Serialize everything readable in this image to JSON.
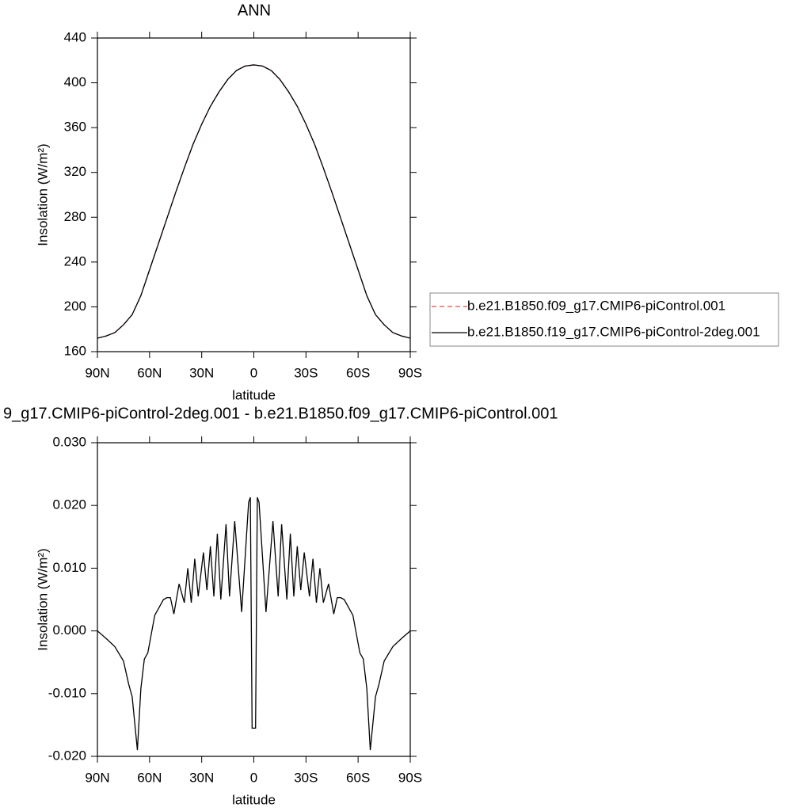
{
  "chart_data": [
    {
      "type": "line",
      "title": "ANN",
      "x_label": "latitude",
      "y_label": "Insolation (W/m²)",
      "x": [
        90,
        85,
        80,
        75,
        70,
        65,
        60,
        55,
        50,
        45,
        40,
        35,
        30,
        25,
        20,
        15,
        10,
        5,
        0,
        -5,
        -10,
        -15,
        -20,
        -25,
        -30,
        -35,
        -40,
        -45,
        -50,
        -55,
        -60,
        -65,
        -70,
        -75,
        -80,
        -85,
        -90
      ],
      "series": [
        {
          "name": "b.e21.B1850.f09_g17.CMIP6-piControl.001",
          "color": "#e8474c",
          "dash": true,
          "values": [
            172,
            174,
            177,
            184,
            193,
            210,
            233,
            256,
            279,
            302,
            324,
            345,
            363,
            379,
            392,
            403,
            411,
            415,
            416,
            415,
            411,
            403,
            392,
            379,
            363,
            345,
            324,
            302,
            279,
            256,
            233,
            210,
            193,
            184,
            177,
            174,
            172
          ]
        },
        {
          "name": "b.e21.B1850.f19_g17.CMIP6-piControl-2deg.001",
          "color": "#000000",
          "dash": false,
          "values": [
            172,
            174,
            177,
            184,
            193,
            210,
            233,
            256,
            279,
            302,
            324,
            345,
            363,
            379,
            392,
            403,
            411,
            415,
            416,
            415,
            411,
            403,
            392,
            379,
            363,
            345,
            324,
            302,
            279,
            256,
            233,
            210,
            193,
            184,
            177,
            174,
            172
          ]
        }
      ],
      "xlim": [
        90,
        -90
      ],
      "xticks": [
        {
          "value": 90,
          "label": "90N"
        },
        {
          "value": 60,
          "label": "60N"
        },
        {
          "value": 30,
          "label": "30N"
        },
        0,
        {
          "value": -30,
          "label": "30S"
        },
        {
          "value": -60,
          "label": "60S"
        },
        {
          "value": -90,
          "label": "90S"
        }
      ],
      "ylim": [
        160,
        440
      ],
      "yticks": [
        160,
        200,
        240,
        280,
        320,
        360,
        400,
        440
      ],
      "legend": "right"
    },
    {
      "type": "line",
      "title": "9_g17.CMIP6-piControl-2deg.001 - b.e21.B1850.f09_g17.CMIP6-piControl.001",
      "x_label": "latitude",
      "y_label": "Insolation (W/m²)",
      "x": [
        90,
        85,
        80,
        75,
        72,
        70,
        67,
        65,
        63,
        61,
        59,
        57,
        55,
        52,
        50,
        48,
        46,
        43,
        40,
        38,
        36,
        34,
        32,
        29,
        27,
        25,
        23,
        21,
        19,
        16,
        14,
        11,
        7,
        3,
        2,
        1,
        -1,
        -2,
        -3,
        -7,
        -11,
        -14,
        -16,
        -19,
        -21,
        -23,
        -25,
        -27,
        -29,
        -32,
        -34,
        -36,
        -38,
        -40,
        -43,
        -46,
        -48,
        -50,
        -52,
        -55,
        -57,
        -59,
        -61,
        -63,
        -65,
        -67,
        -70,
        -72,
        -75,
        -80,
        -85,
        -90
      ],
      "values": [
        0.0,
        -0.0012,
        -0.0025,
        -0.0048,
        -0.0085,
        -0.0105,
        -0.019,
        -0.0092,
        -0.0045,
        -0.0035,
        -0.0005,
        0.0025,
        0.0035,
        0.005,
        0.0053,
        0.0053,
        0.0027,
        0.0075,
        0.0045,
        0.01,
        0.0045,
        0.0115,
        0.0055,
        0.0125,
        0.0065,
        0.0135,
        0.0055,
        0.0155,
        0.005,
        0.017,
        0.0055,
        0.0175,
        0.003,
        0.0205,
        0.0213,
        -0.0155,
        -0.0155,
        0.0213,
        0.0205,
        0.003,
        0.0175,
        0.0055,
        0.017,
        0.005,
        0.0155,
        0.0055,
        0.0135,
        0.0065,
        0.0125,
        0.0055,
        0.0115,
        0.0045,
        0.01,
        0.0045,
        0.0075,
        0.0027,
        0.0053,
        0.0053,
        0.005,
        0.0035,
        0.0025,
        -0.0005,
        -0.0035,
        -0.0045,
        -0.0092,
        -0.019,
        -0.0105,
        -0.0085,
        -0.0048,
        -0.0025,
        -0.0012,
        0.0
      ],
      "color": "#000000",
      "xlim": [
        90,
        -90
      ],
      "xticks": [
        {
          "value": 90,
          "label": "90N"
        },
        {
          "value": 60,
          "label": "60N"
        },
        {
          "value": 30,
          "label": "30N"
        },
        0,
        {
          "value": -30,
          "label": "30S"
        },
        {
          "value": -60,
          "label": "60S"
        },
        {
          "value": -90,
          "label": "90S"
        }
      ],
      "ylim": [
        -0.02,
        0.03
      ],
      "yticks": [
        {
          "value": -0.02,
          "label": "-0.020"
        },
        {
          "value": -0.01,
          "label": "-0.010"
        },
        {
          "value": 0,
          "label": "0.000"
        },
        {
          "value": 0.01,
          "label": "0.010"
        },
        {
          "value": 0.02,
          "label": "0.020"
        },
        {
          "value": 0.03,
          "label": "0.030"
        }
      ]
    }
  ]
}
